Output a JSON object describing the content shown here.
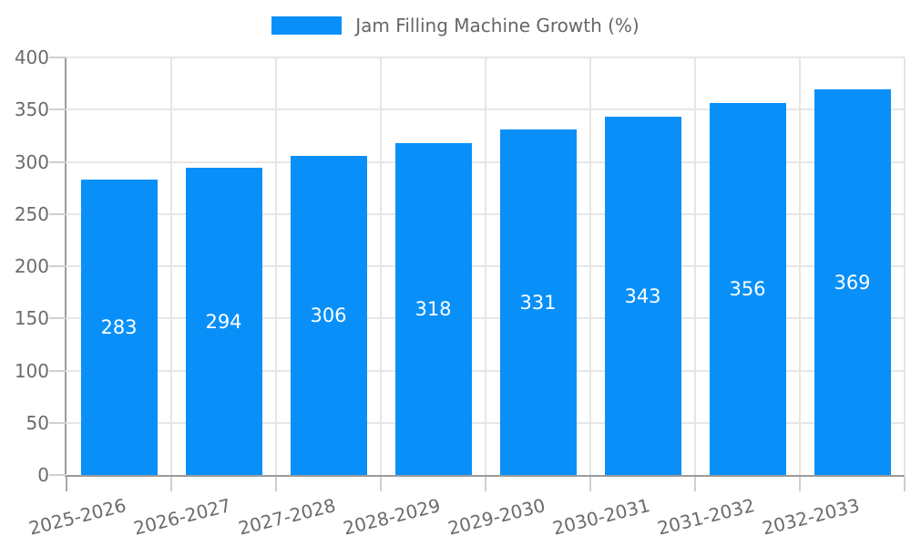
{
  "chart_data": {
    "type": "bar",
    "title": "",
    "series_name": "Jam Filling Machine Growth (%)",
    "categories": [
      "2025-2026",
      "2026-2027",
      "2027-2028",
      "2028-2029",
      "2029-2030",
      "2030-2031",
      "2031-2032",
      "2032-2033"
    ],
    "values": [
      283,
      294,
      306,
      318,
      331,
      343,
      356,
      369
    ],
    "xlabel": "",
    "ylabel": "",
    "ylim": [
      0,
      400
    ],
    "ytick_step": 50,
    "ytick_labels": [
      "0",
      "50",
      "100",
      "150",
      "200",
      "250",
      "300",
      "350",
      "400"
    ],
    "grid": true,
    "legend_position": "top",
    "bar_value_labels_shown": true,
    "colors": {
      "bar": "#0890f8",
      "bar_value_text": "#ffffff",
      "grid_line": "#e6e6e6",
      "tick_mark": "#cfcfcf",
      "axis_line": "#9b9b9b",
      "tick_text": "#6b6b6b",
      "legend_text": "#666666",
      "background": "#ffffff"
    }
  }
}
